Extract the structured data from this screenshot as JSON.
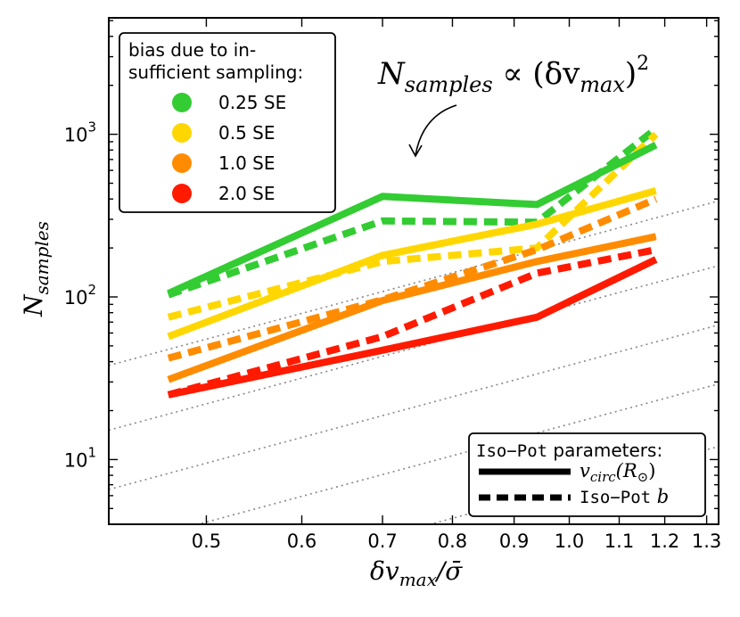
{
  "chart_data": {
    "type": "line",
    "xscale": "log",
    "yscale": "log",
    "xlim": [
      0.415,
      1.33
    ],
    "ylim": [
      4.0,
      5200
    ],
    "xticks": [
      0.5,
      0.6,
      0.7,
      0.8,
      0.9,
      1.0,
      1.1,
      1.2,
      1.3
    ],
    "xtick_labels": [
      "0.5",
      "0.6",
      "0.7",
      "0.8",
      "0.9",
      "1.0",
      "1.1",
      "1.2",
      "1.3"
    ],
    "yticks": [
      {
        "value": 10,
        "base": "10",
        "exp": "1"
      },
      {
        "value": 100,
        "base": "10",
        "exp": "2"
      },
      {
        "value": 1000,
        "base": "10",
        "exp": "3"
      }
    ],
    "xlabel": {
      "main": "δv",
      "sub": "max",
      "rest": "/σ̄"
    },
    "ylabel": {
      "main": "N",
      "sub": "samples"
    },
    "x": [
      0.465,
      0.7,
      0.94,
      1.18
    ],
    "series": [
      {
        "name": "0.25 SE",
        "method": "v_circ",
        "color": "#33cc33",
        "values": [
          105,
          415,
          370,
          860
        ]
      },
      {
        "name": "0.25 SE",
        "method": "iso_b",
        "color": "#33cc33",
        "values": [
          103,
          293,
          288,
          1080
        ]
      },
      {
        "name": "0.5 SE",
        "method": "v_circ",
        "color": "#ffd700",
        "values": [
          57,
          180,
          280,
          450
        ]
      },
      {
        "name": "0.5 SE",
        "method": "iso_b",
        "color": "#ffd700",
        "values": [
          75,
          165,
          200,
          1000
        ]
      },
      {
        "name": "1.0 SE",
        "method": "v_circ",
        "color": "#ff8c00",
        "values": [
          31,
          95,
          165,
          235
        ]
      },
      {
        "name": "1.0 SE",
        "method": "iso_b",
        "color": "#ff8c00",
        "values": [
          42,
          96,
          195,
          400
        ]
      },
      {
        "name": "2.0 SE",
        "method": "v_circ",
        "color": "#ff1a00",
        "values": [
          25,
          47,
          75,
          170
        ]
      },
      {
        "name": "2.0 SE",
        "method": "iso_b",
        "color": "#ff1a00",
        "values": [
          25,
          57,
          140,
          195
        ]
      }
    ],
    "reference_lines": {
      "description": "N_samples proportional to (dv_max)^2",
      "values_at_x1": [
        6.8,
        16.5,
        38,
        88,
        220
      ],
      "color": "#888888"
    },
    "annotation": {
      "main": "N",
      "sub": "samples",
      "middle": " ∝ (δv",
      "sub2": "max",
      "close": ")",
      "sup": "2"
    },
    "legend_bias": {
      "title_line1": "bias due to in-",
      "title_line2": "sufficient sampling:",
      "entries": [
        {
          "label": "0.25 SE",
          "color": "#33cc33"
        },
        {
          "label": "0.5 SE",
          "color": "#ffd700"
        },
        {
          "label": "1.0 SE",
          "color": "#ff8c00"
        },
        {
          "label": "2.0 SE",
          "color": "#ff1a00"
        }
      ],
      "placement": "top-left"
    },
    "legend_method": {
      "title_mono": "Iso−Pot",
      "title_rest": " parameters:",
      "entry1": {
        "main": "v",
        "sub": "circ",
        "rest": "(R",
        "sub2": "⊙",
        "close": ")"
      },
      "entry2": {
        "mono": "Iso−Pot",
        "rest": " b"
      },
      "placement": "bottom-right"
    }
  }
}
